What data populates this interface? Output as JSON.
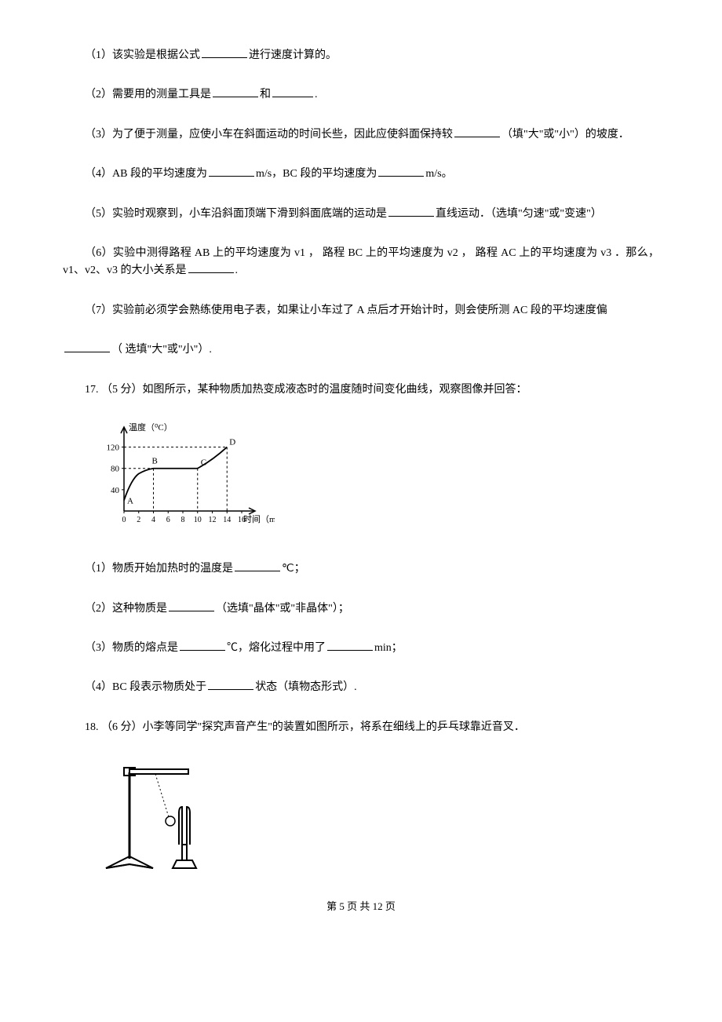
{
  "q1": {
    "p1_a": "（1）该实验是根据公式",
    "p1_b": "进行速度计算的。",
    "p2_a": "（2）需要用的测量工具是",
    "p2_b": "和",
    "p2_c": ".",
    "p3_a": "（3）为了便于测量，应使小车在斜面运动的时间长些，因此应使斜面保持较",
    "p3_b": "（填\"大\"或\"小\"）的坡度．",
    "p4_a": "（4）AB 段的平均速度为",
    "p4_b": "m/s，BC 段的平均速度为",
    "p4_c": "m/s。",
    "p5_a": "（5）实验时观察到，小车沿斜面顶端下滑到斜面底端的运动是",
    "p5_b": "直线运动．（选填\"匀速\"或\"变速\"）",
    "p6_a": "（6）实验中测得路程 AB 上的平均速度为 v1 ， 路程 BC 上的平均速度为 v2 ， 路程 AC 上的平均速度为 v3 ．那么，v1、v2、v3 的大小关系是",
    "p6_b": ".",
    "p7_a": "（7）实验前必须学会熟练使用电子表，如果让小车过了 A 点后才开始计时，则会使所测 AC 段的平均速度偏",
    "p7_b": "（ 选填\"大\"或\"小\"）."
  },
  "q17": {
    "intro": "17. （5 分）如图所示，某种物质加热变成液态时的温度随时间变化曲线，观察图像并回答：",
    "p1_a": "（1）物质开始加热时的温度是",
    "p1_b": "℃；",
    "p2_a": "（2）这种物质是",
    "p2_b": "（选填\"晶体\"或\"非晶体\"）；",
    "p3_a": "（3）物质的熔点是",
    "p3_b": "℃，熔化过程中用了",
    "p3_c": "min；",
    "p4_a": "（4）BC 段表示物质处于",
    "p4_b": "状态（填物态形式）."
  },
  "q18": {
    "intro": "18. （6 分）小李等同学\"探究声音产生\"的装置如图所示，将系在细线上的乒乓球靠近音叉．"
  },
  "chart": {
    "y_label": "温度（⁰C）",
    "x_label": "时间（min）",
    "y_ticks": [
      40,
      80,
      120
    ],
    "x_ticks": [
      0,
      2,
      4,
      6,
      8,
      10,
      12,
      14,
      16
    ],
    "points": {
      "A": {
        "x": 0,
        "y": 20,
        "label": "A"
      },
      "B": {
        "x": 4,
        "y": 80,
        "label": "B"
      },
      "C": {
        "x": 10,
        "y": 80,
        "label": "C"
      },
      "D": {
        "x": 14,
        "y": 120,
        "label": "D"
      }
    },
    "axis_color": "#000000",
    "curve_color": "#000000",
    "dash_color": "#000000",
    "font_size": 11
  },
  "footer": {
    "a": "第 ",
    "page": "5",
    "b": " 页 共 ",
    "total": "12",
    "c": " 页"
  }
}
